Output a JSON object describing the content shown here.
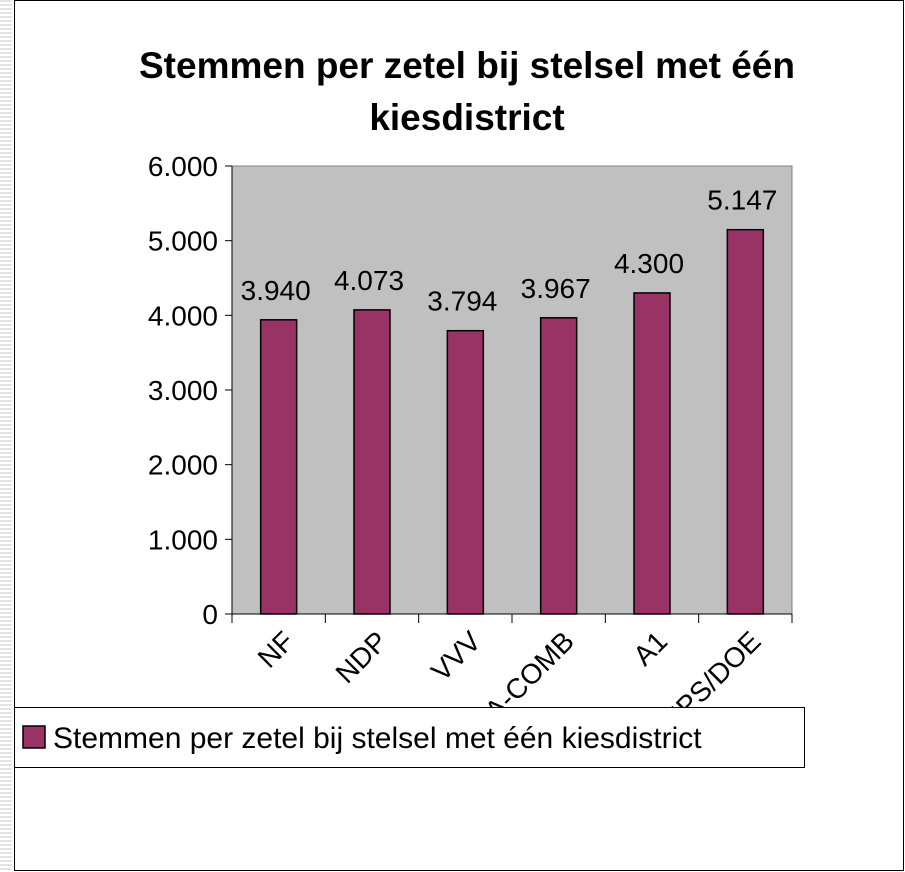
{
  "chart_data": {
    "type": "bar",
    "title": "Stemmen per zetel bij stelsel met één kiesdistrict",
    "categories": [
      "NF",
      "NDP",
      "VVV",
      "A-COMB",
      "A1",
      "UPS/DOE"
    ],
    "series": [
      {
        "name": "Stemmen per zetel bij stelsel met één kiesdistrict",
        "color": "#993366",
        "values": [
          3940,
          4073,
          3794,
          3967,
          4300,
          5147
        ],
        "value_labels": [
          "3.940",
          "4.073",
          "3.794",
          "3.967",
          "4.300",
          "5.147"
        ]
      }
    ],
    "ylim": [
      0,
      6000
    ],
    "yticks": [
      0,
      {
        "value": 1000,
        "label": "1.000"
      },
      {
        "value": 2000,
        "label": "2.000"
      },
      {
        "value": 3000,
        "label": "3.000"
      },
      {
        "value": 4000,
        "label": "4.000"
      },
      {
        "value": 5000,
        "label": "5.000"
      },
      {
        "value": 6000,
        "label": "6.000"
      }
    ],
    "plot_background": "#c0c0c0",
    "legend": "bottom"
  }
}
